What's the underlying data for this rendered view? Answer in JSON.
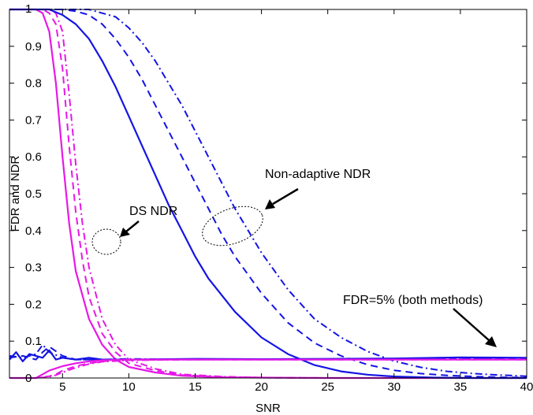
{
  "chart_data": {
    "type": "line",
    "title": "",
    "xlabel": "SNR",
    "ylabel": "FDR and NDR",
    "xlim": [
      1,
      40
    ],
    "ylim": [
      0,
      1
    ],
    "xticks": [
      5,
      10,
      15,
      20,
      25,
      30,
      35,
      40
    ],
    "yticks": [
      0,
      0.1,
      0.2,
      0.3,
      0.4,
      0.5,
      0.6,
      0.7,
      0.8,
      0.9,
      1
    ],
    "grid": false,
    "legend": "none",
    "colors": {
      "ds": "#e619e6",
      "nonadaptive": "#1414e6"
    },
    "annotations": {
      "ds_ndr": "DS NDR",
      "nonadaptive_ndr": "Non-adaptive NDR",
      "fdr_note": "FDR=5% (both methods)"
    },
    "series": [
      {
        "group": "ds",
        "metric": "NDR",
        "style": "solid",
        "x": [
          1,
          2,
          3,
          3.5,
          4,
          4.5,
          5,
          5.5,
          6,
          7,
          8,
          9,
          10,
          12,
          14,
          17,
          20,
          25,
          30,
          35,
          40
        ],
        "y": [
          1,
          1,
          1,
          0.99,
          0.94,
          0.8,
          0.6,
          0.42,
          0.29,
          0.16,
          0.09,
          0.05,
          0.03,
          0.015,
          0.006,
          0.002,
          0.001,
          0,
          0,
          0,
          0
        ]
      },
      {
        "group": "ds",
        "metric": "NDR",
        "style": "dashed",
        "x": [
          1,
          2,
          3,
          3.5,
          4,
          4.5,
          5,
          5.5,
          6,
          6.5,
          7,
          8,
          9,
          10,
          12,
          14,
          17,
          20,
          25,
          30,
          35,
          40
        ],
        "y": [
          1,
          1,
          1,
          1,
          0.99,
          0.96,
          0.84,
          0.63,
          0.45,
          0.32,
          0.22,
          0.12,
          0.07,
          0.04,
          0.02,
          0.008,
          0.003,
          0.001,
          0,
          0,
          0,
          0
        ]
      },
      {
        "group": "ds",
        "metric": "NDR",
        "style": "dashdot",
        "x": [
          1,
          2,
          3,
          4,
          4.5,
          5,
          5.5,
          6,
          6.5,
          7,
          8,
          9,
          10,
          12,
          14,
          17,
          20,
          25,
          30,
          35,
          40
        ],
        "y": [
          1,
          1,
          1,
          1,
          0.99,
          0.94,
          0.77,
          0.58,
          0.42,
          0.3,
          0.16,
          0.09,
          0.05,
          0.025,
          0.01,
          0.004,
          0.001,
          0,
          0,
          0,
          0
        ]
      },
      {
        "group": "nonadaptive",
        "metric": "NDR",
        "style": "solid",
        "x": [
          1,
          3,
          4,
          5,
          6,
          7,
          8,
          9,
          10,
          11,
          12,
          13,
          14,
          15,
          16,
          18,
          20,
          22,
          24,
          26,
          28,
          30,
          33,
          36,
          40
        ],
        "y": [
          1,
          1,
          1,
          0.985,
          0.96,
          0.92,
          0.86,
          0.79,
          0.71,
          0.63,
          0.55,
          0.47,
          0.4,
          0.33,
          0.27,
          0.18,
          0.11,
          0.065,
          0.035,
          0.018,
          0.009,
          0.004,
          0.001,
          0,
          0
        ]
      },
      {
        "group": "nonadaptive",
        "metric": "NDR",
        "style": "dashed",
        "x": [
          1,
          3,
          5,
          6,
          7,
          8,
          9,
          10,
          11,
          12,
          13,
          14,
          15,
          16,
          17,
          18,
          19,
          20,
          22,
          24,
          26,
          28,
          30,
          32,
          34,
          36,
          38,
          40
        ],
        "y": [
          1,
          1,
          1,
          0.995,
          0.985,
          0.96,
          0.92,
          0.87,
          0.81,
          0.74,
          0.67,
          0.6,
          0.53,
          0.46,
          0.39,
          0.33,
          0.28,
          0.23,
          0.15,
          0.095,
          0.06,
          0.036,
          0.021,
          0.012,
          0.007,
          0.004,
          0.002,
          0.001
        ]
      },
      {
        "group": "nonadaptive",
        "metric": "NDR",
        "style": "dashdot",
        "x": [
          1,
          3,
          5,
          7,
          8,
          9,
          10,
          11,
          12,
          13,
          14,
          15,
          16,
          17,
          18,
          19,
          20,
          21,
          22,
          24,
          26,
          28,
          30,
          32,
          34,
          36,
          38,
          40
        ],
        "y": [
          1,
          1,
          1,
          1,
          0.99,
          0.98,
          0.95,
          0.91,
          0.86,
          0.8,
          0.74,
          0.67,
          0.6,
          0.53,
          0.46,
          0.4,
          0.34,
          0.29,
          0.24,
          0.16,
          0.11,
          0.072,
          0.046,
          0.029,
          0.018,
          0.012,
          0.008,
          0.005
        ]
      },
      {
        "group": "nonadaptive",
        "metric": "FDR",
        "style": "solid",
        "x": [
          1,
          1.5,
          2,
          2.5,
          3,
          3.5,
          4,
          4.5,
          5,
          6,
          7,
          8,
          10,
          15,
          20,
          25,
          30,
          35,
          40
        ],
        "y": [
          0.05,
          0.07,
          0.045,
          0.065,
          0.06,
          0.055,
          0.075,
          0.05,
          0.055,
          0.05,
          0.055,
          0.05,
          0.05,
          0.052,
          0.051,
          0.052,
          0.053,
          0.056,
          0.055
        ]
      },
      {
        "group": "nonadaptive",
        "metric": "FDR",
        "style": "dashed",
        "x": [
          1,
          2,
          3,
          3.5,
          4,
          5,
          6,
          8,
          10,
          15,
          20,
          25,
          30,
          35,
          40
        ],
        "y": [
          0.055,
          0.06,
          0.05,
          0.07,
          0.085,
          0.06,
          0.05,
          0.05,
          0.05,
          0.051,
          0.05,
          0.051,
          0.052,
          0.053,
          0.053
        ]
      },
      {
        "group": "nonadaptive",
        "metric": "FDR",
        "style": "dashdot",
        "x": [
          1,
          2,
          3,
          3.5,
          4,
          5,
          6,
          8,
          10,
          15,
          20,
          25,
          30,
          35,
          40
        ],
        "y": [
          0.06,
          0.055,
          0.065,
          0.09,
          0.07,
          0.055,
          0.05,
          0.05,
          0.052,
          0.05,
          0.051,
          0.05,
          0.051,
          0.052,
          0.05
        ]
      },
      {
        "group": "ds",
        "metric": "FDR",
        "style": "solid",
        "x": [
          1,
          2,
          3,
          3.5,
          4,
          5,
          6,
          7,
          8,
          10,
          15,
          20,
          25,
          30,
          35,
          40
        ],
        "y": [
          0,
          0,
          0,
          0.01,
          0.02,
          0.032,
          0.04,
          0.045,
          0.048,
          0.05,
          0.05,
          0.05,
          0.05,
          0.05,
          0.05,
          0.05
        ]
      },
      {
        "group": "ds",
        "metric": "FDR",
        "style": "dashed",
        "x": [
          1,
          2,
          3,
          4,
          4.5,
          5,
          6,
          7,
          8,
          10,
          15,
          20,
          25,
          30,
          35,
          40
        ],
        "y": [
          0,
          0,
          0,
          0.005,
          0.01,
          0.02,
          0.032,
          0.04,
          0.045,
          0.049,
          0.05,
          0.05,
          0.05,
          0.05,
          0.05,
          0.05
        ]
      },
      {
        "group": "ds",
        "metric": "FDR",
        "style": "dashdot",
        "x": [
          1,
          2,
          3,
          4,
          4.5,
          5,
          6,
          7,
          8,
          10,
          15,
          20,
          25,
          30,
          35,
          40
        ],
        "y": [
          0,
          0,
          0,
          0.003,
          0.008,
          0.015,
          0.028,
          0.038,
          0.044,
          0.048,
          0.05,
          0.05,
          0.05,
          0.05,
          0.05,
          0.05
        ]
      }
    ]
  }
}
